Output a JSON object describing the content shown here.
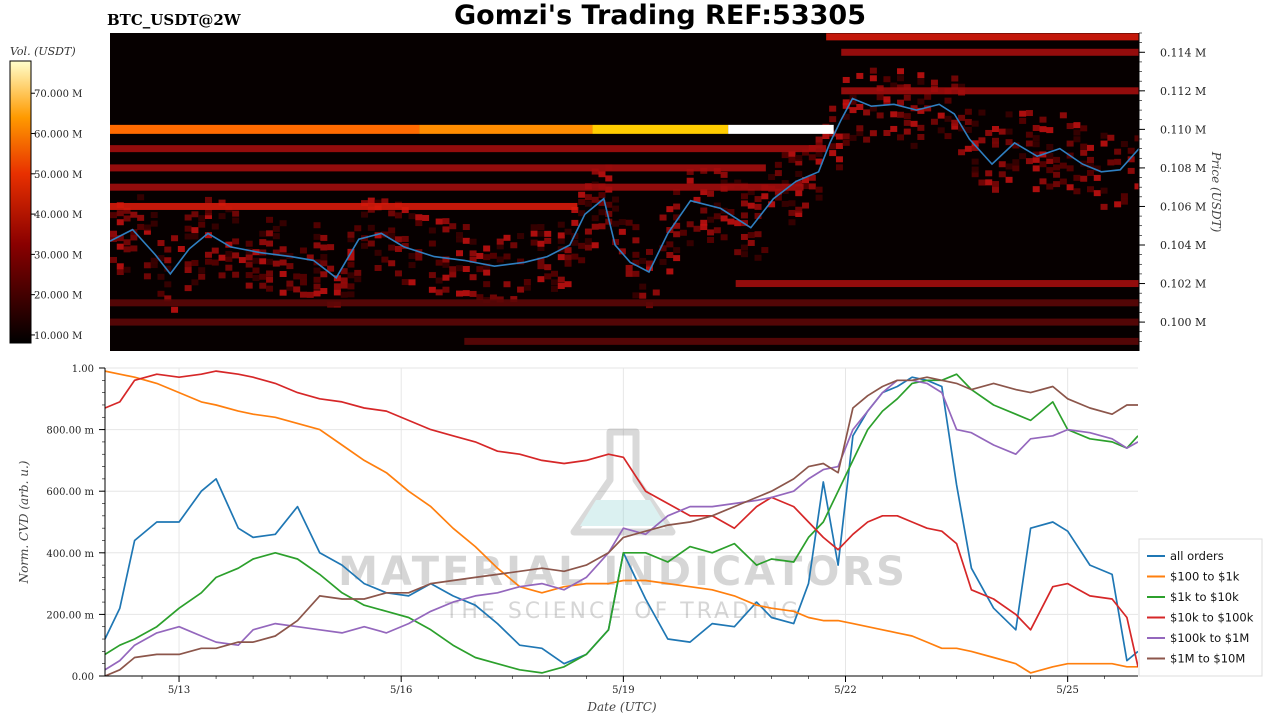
{
  "header": {
    "symbol": "BTC_USDT@2W",
    "title": "Gomzi's Trading REF:53305"
  },
  "watermark": {
    "brand": "MATERIAL INDICATORS",
    "tagline": "THE SCIENCE OF TRADING"
  },
  "chart_data": [
    {
      "type": "heatmap",
      "title": "",
      "colorbar": {
        "label": "Vol. (USDT)",
        "ticks": [
          "10.000 M",
          "20.000 M",
          "30.000 M",
          "40.000 M",
          "50.000 M",
          "60.000 M",
          "70.000 M"
        ],
        "tick_values": [
          10,
          20,
          30,
          40,
          50,
          60,
          70
        ],
        "range": [
          8,
          78
        ]
      },
      "y_axis": {
        "label": "Price (USDT)",
        "position": "right",
        "ticks": [
          "0.100 M",
          "0.102 M",
          "0.104 M",
          "0.106 M",
          "0.108 M",
          "0.110 M",
          "0.112 M",
          "0.114 M"
        ],
        "tick_values": [
          100000,
          102000,
          104000,
          106000,
          108000,
          110000,
          112000,
          114000
        ],
        "range": [
          98500,
          115000
        ]
      },
      "x_range": [
        12.3,
        25.95
      ],
      "price_line": {
        "color": "#2f7fc1",
        "x": [
          12.3,
          12.6,
          12.9,
          13.1,
          13.35,
          13.6,
          13.9,
          14.3,
          14.7,
          15.0,
          15.3,
          15.6,
          15.9,
          16.2,
          16.6,
          17.0,
          17.4,
          17.8,
          18.1,
          18.4,
          18.6,
          18.85,
          19.0,
          19.2,
          19.45,
          19.7,
          20.0,
          20.4,
          20.8,
          21.1,
          21.4,
          21.7,
          21.85,
          22.0,
          22.15,
          22.4,
          22.7,
          23.0,
          23.3,
          23.5,
          23.7,
          24.0,
          24.3,
          24.6,
          24.9,
          25.2,
          25.45,
          25.7,
          25.95
        ],
        "y": [
          104200,
          104800,
          103500,
          102500,
          103800,
          104600,
          103900,
          103600,
          103400,
          103200,
          102300,
          104300,
          104600,
          103900,
          103400,
          103200,
          102900,
          103100,
          103400,
          104000,
          105600,
          106400,
          104000,
          103100,
          102600,
          104600,
          106300,
          105900,
          104900,
          106400,
          107300,
          107800,
          109300,
          110500,
          111600,
          111200,
          111300,
          111000,
          111300,
          110800,
          109500,
          108200,
          109300,
          108600,
          109000,
          108200,
          107800,
          107900,
          109000
        ]
      },
      "bands": [
        {
          "price": 110000,
          "start": 12.3,
          "end": 21.9,
          "colors": [
            "#ff6a00",
            "#ff8c00",
            "#ffcc00",
            "#ffffff"
          ],
          "breaks": [
            16.4,
            18.7,
            20.5
          ],
          "intensity": "very high"
        },
        {
          "price": 106000,
          "start": 12.3,
          "end": 18.5,
          "intensity": "high"
        },
        {
          "price": 107000,
          "start": 12.3,
          "end": 21.5,
          "intensity": "medium"
        },
        {
          "price": 108000,
          "start": 12.3,
          "end": 21.0,
          "intensity": "medium"
        },
        {
          "price": 109000,
          "start": 12.3,
          "end": 21.8,
          "intensity": "medium"
        },
        {
          "price": 114800,
          "start": 21.8,
          "end": 25.95,
          "intensity": "high"
        },
        {
          "price": 114000,
          "start": 22.0,
          "end": 25.95,
          "intensity": "medium"
        },
        {
          "price": 112000,
          "start": 22.0,
          "end": 25.95,
          "intensity": "medium"
        },
        {
          "price": 102000,
          "start": 20.6,
          "end": 25.95,
          "intensity": "medium"
        },
        {
          "price": 101000,
          "start": 12.3,
          "end": 25.95,
          "intensity": "low"
        },
        {
          "price": 100000,
          "start": 12.3,
          "end": 25.95,
          "intensity": "low"
        },
        {
          "price": 99000,
          "start": 17.0,
          "end": 25.95,
          "intensity": "low"
        }
      ]
    },
    {
      "type": "line",
      "title": "",
      "xlabel": "Date (UTC)",
      "ylabel": "Norm. CVD (arb. u.)",
      "x_ticks": [
        "5/13",
        "5/16",
        "5/19",
        "5/22",
        "5/25"
      ],
      "x_tick_values": [
        13,
        16,
        19,
        22,
        25
      ],
      "x_range": [
        12.0,
        25.95
      ],
      "y_ticks": [
        "0.00",
        "200.00 m",
        "400.00 m",
        "600.00 m",
        "800.00 m",
        "1.00"
      ],
      "y_tick_values": [
        0,
        0.2,
        0.4,
        0.6,
        0.8,
        1.0
      ],
      "ylim": [
        0,
        1.0
      ],
      "grid": true,
      "legend": "right",
      "x": [
        12.0,
        12.2,
        12.4,
        12.7,
        13.0,
        13.3,
        13.5,
        13.8,
        14.0,
        14.3,
        14.6,
        14.9,
        15.2,
        15.5,
        15.8,
        16.1,
        16.4,
        16.7,
        17.0,
        17.3,
        17.6,
        17.9,
        18.2,
        18.5,
        18.8,
        19.0,
        19.3,
        19.6,
        19.9,
        20.2,
        20.5,
        20.8,
        21.0,
        21.3,
        21.5,
        21.7,
        21.9,
        22.1,
        22.3,
        22.5,
        22.7,
        22.9,
        23.1,
        23.3,
        23.5,
        23.7,
        24.0,
        24.3,
        24.5,
        24.8,
        25.0,
        25.3,
        25.6,
        25.8,
        25.95
      ],
      "series": [
        {
          "name": "all orders",
          "color": "#1f77b4",
          "values": [
            0.12,
            0.22,
            0.44,
            0.5,
            0.5,
            0.6,
            0.64,
            0.48,
            0.45,
            0.46,
            0.55,
            0.4,
            0.36,
            0.3,
            0.27,
            0.26,
            0.3,
            0.26,
            0.23,
            0.17,
            0.1,
            0.09,
            0.04,
            0.07,
            0.15,
            0.4,
            0.25,
            0.12,
            0.11,
            0.17,
            0.16,
            0.24,
            0.19,
            0.17,
            0.3,
            0.63,
            0.36,
            0.78,
            0.86,
            0.92,
            0.94,
            0.97,
            0.96,
            0.94,
            0.62,
            0.35,
            0.22,
            0.15,
            0.48,
            0.5,
            0.47,
            0.36,
            0.33,
            0.05,
            0.08
          ]
        },
        {
          "name": "$100 to $1k",
          "color": "#ff7f0e",
          "values": [
            0.99,
            0.98,
            0.97,
            0.95,
            0.92,
            0.89,
            0.88,
            0.86,
            0.85,
            0.84,
            0.82,
            0.8,
            0.75,
            0.7,
            0.66,
            0.6,
            0.55,
            0.48,
            0.42,
            0.35,
            0.29,
            0.27,
            0.29,
            0.3,
            0.3,
            0.31,
            0.31,
            0.3,
            0.29,
            0.28,
            0.26,
            0.23,
            0.22,
            0.21,
            0.19,
            0.18,
            0.18,
            0.17,
            0.16,
            0.15,
            0.14,
            0.13,
            0.11,
            0.09,
            0.09,
            0.08,
            0.06,
            0.04,
            0.01,
            0.03,
            0.04,
            0.04,
            0.04,
            0.03,
            0.03
          ]
        },
        {
          "name": "$1k to $10k",
          "color": "#2ca02c",
          "values": [
            0.07,
            0.1,
            0.12,
            0.16,
            0.22,
            0.27,
            0.32,
            0.35,
            0.38,
            0.4,
            0.38,
            0.33,
            0.27,
            0.23,
            0.21,
            0.19,
            0.15,
            0.1,
            0.06,
            0.04,
            0.02,
            0.01,
            0.03,
            0.07,
            0.15,
            0.4,
            0.4,
            0.37,
            0.42,
            0.4,
            0.43,
            0.36,
            0.38,
            0.37,
            0.45,
            0.5,
            0.6,
            0.7,
            0.8,
            0.86,
            0.9,
            0.95,
            0.96,
            0.96,
            0.98,
            0.93,
            0.88,
            0.85,
            0.83,
            0.89,
            0.8,
            0.77,
            0.76,
            0.74,
            0.78
          ]
        },
        {
          "name": "$10k to $100k",
          "color": "#d62728",
          "values": [
            0.87,
            0.89,
            0.96,
            0.98,
            0.97,
            0.98,
            0.99,
            0.98,
            0.97,
            0.95,
            0.92,
            0.9,
            0.89,
            0.87,
            0.86,
            0.83,
            0.8,
            0.78,
            0.76,
            0.73,
            0.72,
            0.7,
            0.69,
            0.7,
            0.72,
            0.71,
            0.6,
            0.56,
            0.52,
            0.52,
            0.48,
            0.55,
            0.58,
            0.55,
            0.5,
            0.45,
            0.41,
            0.46,
            0.5,
            0.52,
            0.52,
            0.5,
            0.48,
            0.47,
            0.43,
            0.28,
            0.25,
            0.2,
            0.15,
            0.29,
            0.3,
            0.26,
            0.25,
            0.19,
            0.03
          ]
        },
        {
          "name": "$100k to $1M",
          "color": "#9467bd",
          "values": [
            0.02,
            0.05,
            0.1,
            0.14,
            0.16,
            0.13,
            0.11,
            0.1,
            0.15,
            0.17,
            0.16,
            0.15,
            0.14,
            0.16,
            0.14,
            0.17,
            0.21,
            0.24,
            0.26,
            0.27,
            0.29,
            0.3,
            0.28,
            0.32,
            0.4,
            0.48,
            0.46,
            0.52,
            0.55,
            0.55,
            0.56,
            0.57,
            0.58,
            0.6,
            0.64,
            0.67,
            0.68,
            0.8,
            0.86,
            0.92,
            0.96,
            0.96,
            0.95,
            0.92,
            0.8,
            0.79,
            0.75,
            0.72,
            0.77,
            0.78,
            0.8,
            0.79,
            0.77,
            0.74,
            0.76
          ]
        },
        {
          "name": "$1M to $10M",
          "color": "#8c564b",
          "values": [
            0.0,
            0.02,
            0.06,
            0.07,
            0.07,
            0.09,
            0.09,
            0.11,
            0.11,
            0.13,
            0.18,
            0.26,
            0.25,
            0.25,
            0.27,
            0.27,
            0.3,
            0.31,
            0.32,
            0.33,
            0.34,
            0.35,
            0.34,
            0.36,
            0.4,
            0.45,
            0.47,
            0.49,
            0.5,
            0.52,
            0.55,
            0.58,
            0.6,
            0.64,
            0.68,
            0.69,
            0.66,
            0.87,
            0.91,
            0.94,
            0.96,
            0.96,
            0.97,
            0.96,
            0.95,
            0.93,
            0.95,
            0.93,
            0.92,
            0.94,
            0.9,
            0.87,
            0.85,
            0.88,
            0.88
          ]
        }
      ]
    }
  ]
}
